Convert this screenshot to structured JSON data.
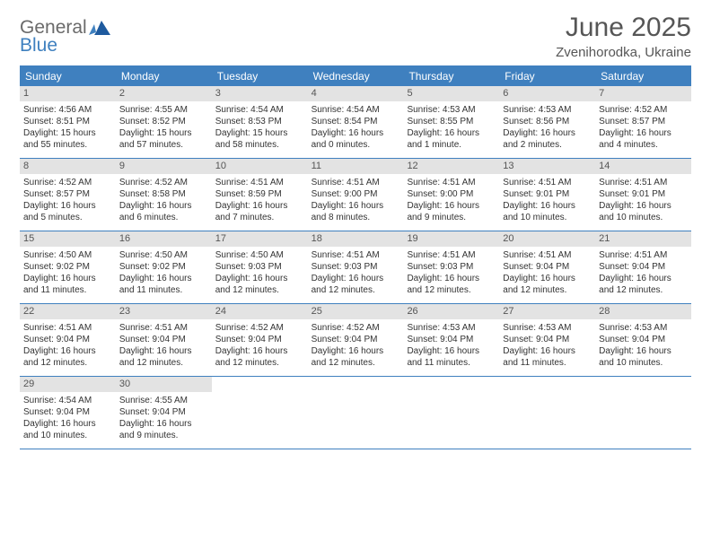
{
  "logo": {
    "general": "General",
    "blue": "Blue"
  },
  "title": "June 2025",
  "location": "Zvenihorodka, Ukraine",
  "colors": {
    "header_bg": "#3f80bf",
    "header_text": "#ffffff",
    "daynum_bg": "#e3e3e3",
    "text": "#333333",
    "title_text": "#565656",
    "page_bg": "#ffffff"
  },
  "dow": [
    "Sunday",
    "Monday",
    "Tuesday",
    "Wednesday",
    "Thursday",
    "Friday",
    "Saturday"
  ],
  "weeks": [
    [
      {
        "n": "1",
        "sr": "Sunrise: 4:56 AM",
        "ss": "Sunset: 8:51 PM",
        "dl": "Daylight: 15 hours and 55 minutes."
      },
      {
        "n": "2",
        "sr": "Sunrise: 4:55 AM",
        "ss": "Sunset: 8:52 PM",
        "dl": "Daylight: 15 hours and 57 minutes."
      },
      {
        "n": "3",
        "sr": "Sunrise: 4:54 AM",
        "ss": "Sunset: 8:53 PM",
        "dl": "Daylight: 15 hours and 58 minutes."
      },
      {
        "n": "4",
        "sr": "Sunrise: 4:54 AM",
        "ss": "Sunset: 8:54 PM",
        "dl": "Daylight: 16 hours and 0 minutes."
      },
      {
        "n": "5",
        "sr": "Sunrise: 4:53 AM",
        "ss": "Sunset: 8:55 PM",
        "dl": "Daylight: 16 hours and 1 minute."
      },
      {
        "n": "6",
        "sr": "Sunrise: 4:53 AM",
        "ss": "Sunset: 8:56 PM",
        "dl": "Daylight: 16 hours and 2 minutes."
      },
      {
        "n": "7",
        "sr": "Sunrise: 4:52 AM",
        "ss": "Sunset: 8:57 PM",
        "dl": "Daylight: 16 hours and 4 minutes."
      }
    ],
    [
      {
        "n": "8",
        "sr": "Sunrise: 4:52 AM",
        "ss": "Sunset: 8:57 PM",
        "dl": "Daylight: 16 hours and 5 minutes."
      },
      {
        "n": "9",
        "sr": "Sunrise: 4:52 AM",
        "ss": "Sunset: 8:58 PM",
        "dl": "Daylight: 16 hours and 6 minutes."
      },
      {
        "n": "10",
        "sr": "Sunrise: 4:51 AM",
        "ss": "Sunset: 8:59 PM",
        "dl": "Daylight: 16 hours and 7 minutes."
      },
      {
        "n": "11",
        "sr": "Sunrise: 4:51 AM",
        "ss": "Sunset: 9:00 PM",
        "dl": "Daylight: 16 hours and 8 minutes."
      },
      {
        "n": "12",
        "sr": "Sunrise: 4:51 AM",
        "ss": "Sunset: 9:00 PM",
        "dl": "Daylight: 16 hours and 9 minutes."
      },
      {
        "n": "13",
        "sr": "Sunrise: 4:51 AM",
        "ss": "Sunset: 9:01 PM",
        "dl": "Daylight: 16 hours and 10 minutes."
      },
      {
        "n": "14",
        "sr": "Sunrise: 4:51 AM",
        "ss": "Sunset: 9:01 PM",
        "dl": "Daylight: 16 hours and 10 minutes."
      }
    ],
    [
      {
        "n": "15",
        "sr": "Sunrise: 4:50 AM",
        "ss": "Sunset: 9:02 PM",
        "dl": "Daylight: 16 hours and 11 minutes."
      },
      {
        "n": "16",
        "sr": "Sunrise: 4:50 AM",
        "ss": "Sunset: 9:02 PM",
        "dl": "Daylight: 16 hours and 11 minutes."
      },
      {
        "n": "17",
        "sr": "Sunrise: 4:50 AM",
        "ss": "Sunset: 9:03 PM",
        "dl": "Daylight: 16 hours and 12 minutes."
      },
      {
        "n": "18",
        "sr": "Sunrise: 4:51 AM",
        "ss": "Sunset: 9:03 PM",
        "dl": "Daylight: 16 hours and 12 minutes."
      },
      {
        "n": "19",
        "sr": "Sunrise: 4:51 AM",
        "ss": "Sunset: 9:03 PM",
        "dl": "Daylight: 16 hours and 12 minutes."
      },
      {
        "n": "20",
        "sr": "Sunrise: 4:51 AM",
        "ss": "Sunset: 9:04 PM",
        "dl": "Daylight: 16 hours and 12 minutes."
      },
      {
        "n": "21",
        "sr": "Sunrise: 4:51 AM",
        "ss": "Sunset: 9:04 PM",
        "dl": "Daylight: 16 hours and 12 minutes."
      }
    ],
    [
      {
        "n": "22",
        "sr": "Sunrise: 4:51 AM",
        "ss": "Sunset: 9:04 PM",
        "dl": "Daylight: 16 hours and 12 minutes."
      },
      {
        "n": "23",
        "sr": "Sunrise: 4:51 AM",
        "ss": "Sunset: 9:04 PM",
        "dl": "Daylight: 16 hours and 12 minutes."
      },
      {
        "n": "24",
        "sr": "Sunrise: 4:52 AM",
        "ss": "Sunset: 9:04 PM",
        "dl": "Daylight: 16 hours and 12 minutes."
      },
      {
        "n": "25",
        "sr": "Sunrise: 4:52 AM",
        "ss": "Sunset: 9:04 PM",
        "dl": "Daylight: 16 hours and 12 minutes."
      },
      {
        "n": "26",
        "sr": "Sunrise: 4:53 AM",
        "ss": "Sunset: 9:04 PM",
        "dl": "Daylight: 16 hours and 11 minutes."
      },
      {
        "n": "27",
        "sr": "Sunrise: 4:53 AM",
        "ss": "Sunset: 9:04 PM",
        "dl": "Daylight: 16 hours and 11 minutes."
      },
      {
        "n": "28",
        "sr": "Sunrise: 4:53 AM",
        "ss": "Sunset: 9:04 PM",
        "dl": "Daylight: 16 hours and 10 minutes."
      }
    ],
    [
      {
        "n": "29",
        "sr": "Sunrise: 4:54 AM",
        "ss": "Sunset: 9:04 PM",
        "dl": "Daylight: 16 hours and 10 minutes."
      },
      {
        "n": "30",
        "sr": "Sunrise: 4:55 AM",
        "ss": "Sunset: 9:04 PM",
        "dl": "Daylight: 16 hours and 9 minutes."
      },
      null,
      null,
      null,
      null,
      null
    ]
  ]
}
